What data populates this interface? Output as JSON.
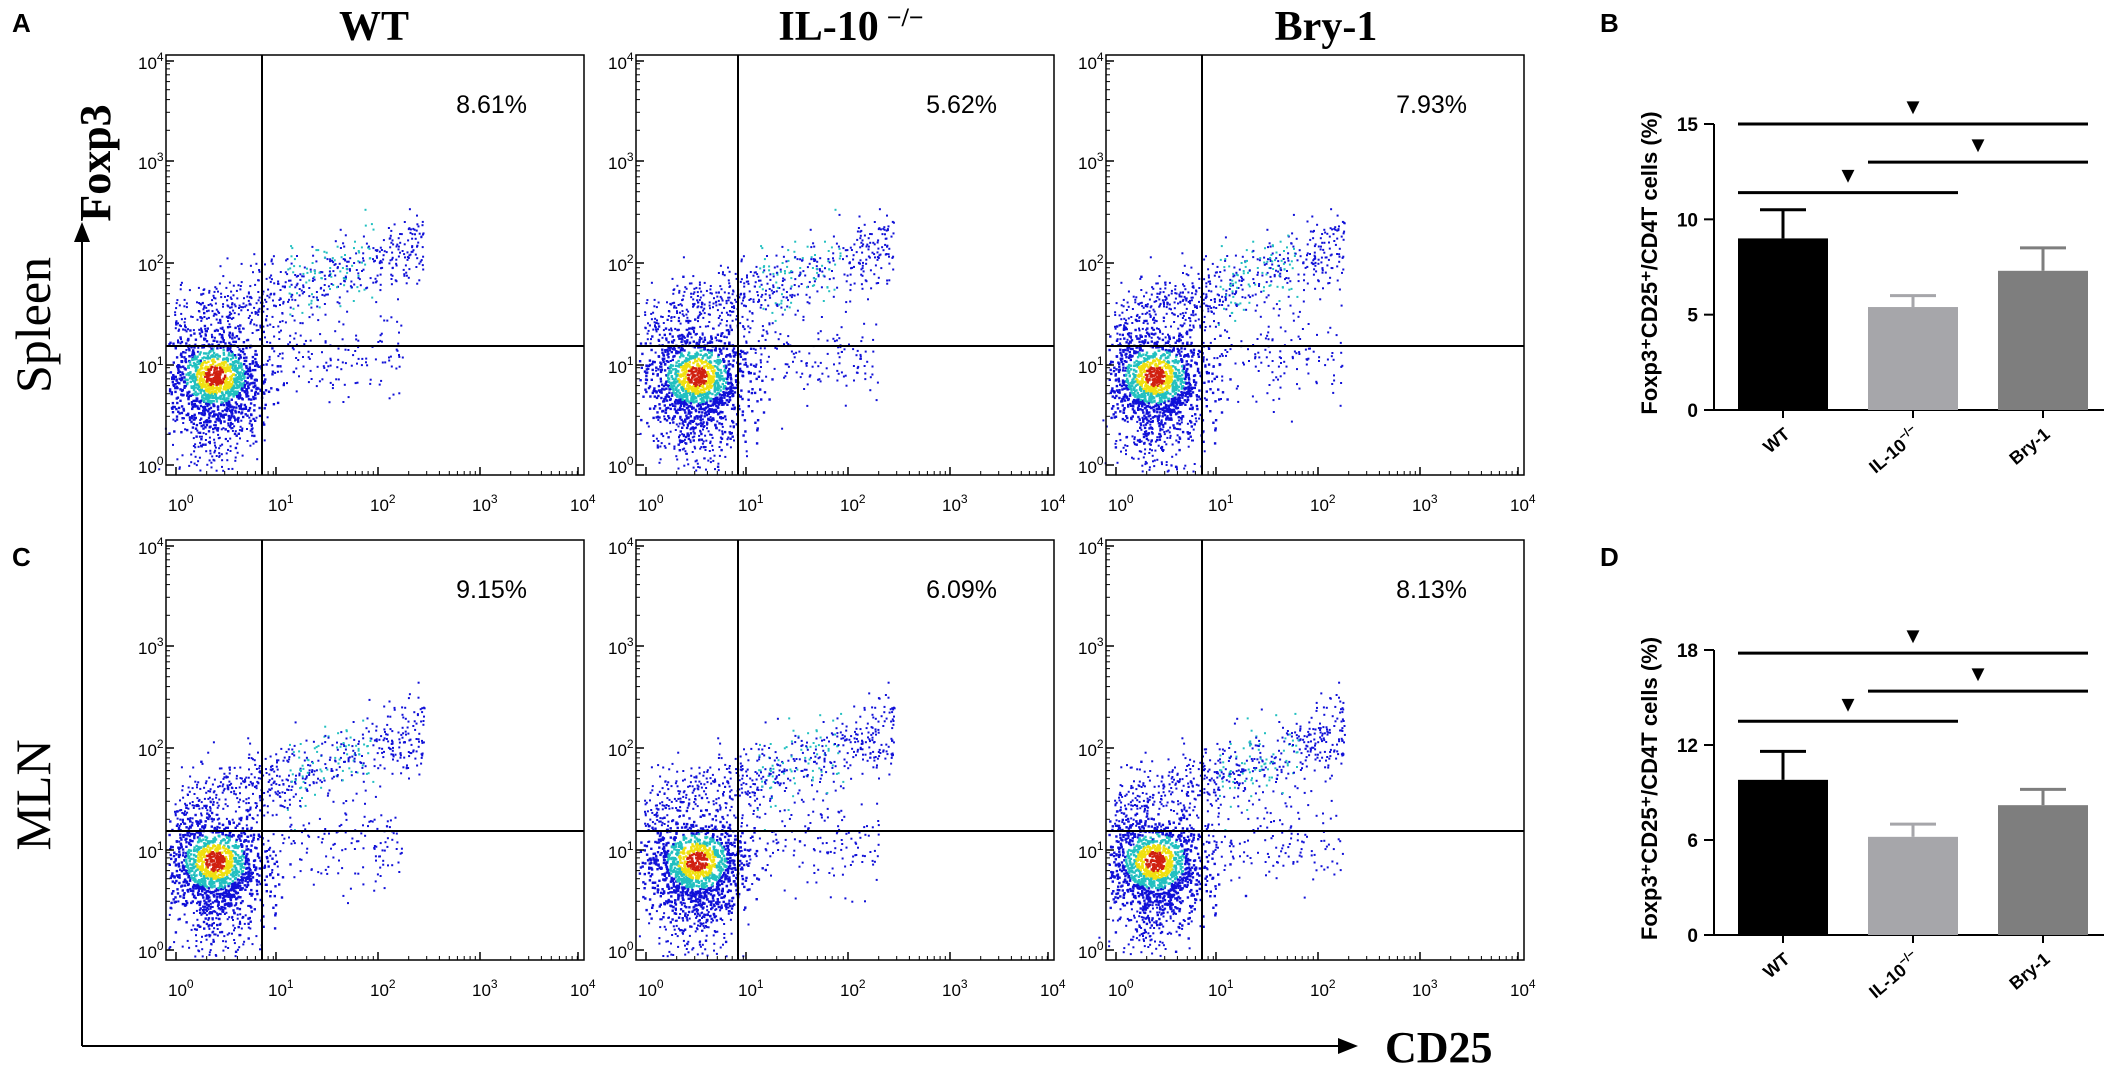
{
  "panels": {
    "flow_label": "A",
    "flow_mln_label": "C",
    "bar_spleen_label": "B",
    "bar_mln_label": "D"
  },
  "flow": {
    "columns": [
      "WT",
      "IL-10",
      "Bry-1"
    ],
    "il10_superscript": "−/−",
    "rows": [
      "Spleen",
      "MLN"
    ],
    "x_axis_label": "CD25",
    "y_axis_label": "Foxp3",
    "tick_base": "10",
    "tick_exponents": [
      "0",
      "1",
      "2",
      "3",
      "4"
    ],
    "percentages": [
      [
        "8.61%",
        "5.62%",
        "7.93%"
      ],
      [
        "9.15%",
        "6.09%",
        "8.13%"
      ]
    ]
  },
  "colors": {
    "density_low": "#1010d8",
    "density_mid": "#22c0c0",
    "density_high": "#f0e010",
    "density_peak": "#d02010",
    "bar_wt": "#000000",
    "bar_il10": "#a6a6aa",
    "bar_bry1": "#7e7e7e"
  },
  "chart_data": [
    {
      "type": "bar",
      "panel": "B",
      "categories": [
        "WT",
        "IL-10",
        "Bry-1"
      ],
      "category_superscripts": [
        "",
        "−/−",
        ""
      ],
      "values": [
        9.0,
        5.4,
        7.3
      ],
      "errors": [
        1.5,
        0.6,
        1.2
      ],
      "ylabel": "Foxp3⁺CD25⁺/CD4T cells (%)",
      "ylim": [
        0,
        15
      ],
      "yticks": [
        "0",
        "5",
        "10",
        "15"
      ],
      "significance": [
        {
          "from": 0,
          "to": 2,
          "value": 15.0,
          "marker": "▼"
        },
        {
          "from": 0,
          "to": 1,
          "value": 11.4,
          "marker": "▼"
        },
        {
          "from": 1,
          "to": 2,
          "value": 13.0,
          "marker": "▼"
        }
      ]
    },
    {
      "type": "bar",
      "panel": "D",
      "categories": [
        "WT",
        "IL-10",
        "Bry-1"
      ],
      "category_superscripts": [
        "",
        "−/−",
        ""
      ],
      "values": [
        9.8,
        6.2,
        8.2
      ],
      "errors": [
        1.8,
        0.8,
        1.0
      ],
      "ylabel": "Foxp3⁺CD25⁺/CD4T cells (%)",
      "ylim": [
        0,
        18
      ],
      "yticks": [
        "0",
        "6",
        "12",
        "18"
      ],
      "significance": [
        {
          "from": 0,
          "to": 2,
          "value": 17.8,
          "marker": "▼"
        },
        {
          "from": 0,
          "to": 1,
          "value": 13.5,
          "marker": "▼"
        },
        {
          "from": 1,
          "to": 2,
          "value": 15.4,
          "marker": "▼"
        }
      ]
    }
  ]
}
